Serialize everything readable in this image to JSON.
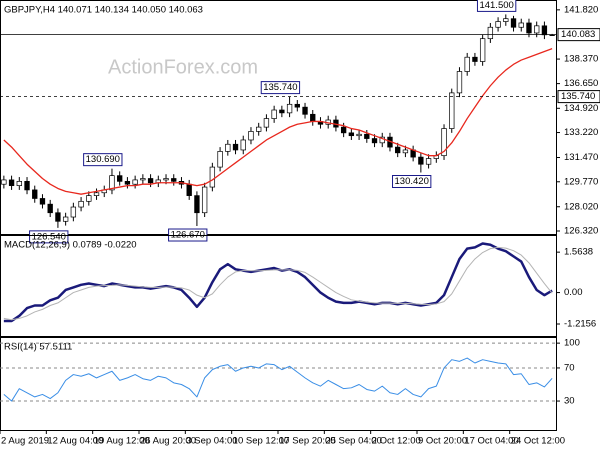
{
  "chart_data": [
    {
      "type": "candlestick",
      "title": "GBPJPY,H4 140.071 140.134 140.050 140.063",
      "watermark": "ActionForex.com",
      "open": [
        129.6,
        129.9,
        129.5,
        129.8,
        129.2,
        128.6,
        128.2,
        127.6,
        127.0,
        127.3,
        128.0,
        128.4,
        128.8,
        129.0,
        129.2,
        130.2,
        129.8,
        129.6,
        129.9,
        130.0,
        129.7,
        129.9,
        130.0,
        129.8,
        129.6,
        128.8,
        127.6,
        129.4,
        130.8,
        131.9,
        132.4,
        132.0,
        132.7,
        133.3,
        133.6,
        134.2,
        134.8,
        134.6,
        135.2,
        135.0,
        134.5,
        134.0,
        133.8,
        134.1,
        133.6,
        133.2,
        133.0,
        133.1,
        132.8,
        132.5,
        132.9,
        132.2,
        131.8,
        132.0,
        131.5,
        131.0,
        131.4,
        131.6,
        133.5,
        136.0,
        137.5,
        138.5,
        138.2,
        139.8,
        140.6,
        141.0,
        141.2,
        140.6,
        140.9,
        140.2,
        140.7,
        140.071
      ],
      "high": [
        130.2,
        130.2,
        130.1,
        130.1,
        129.5,
        128.9,
        128.5,
        127.9,
        127.6,
        128.3,
        128.7,
        129.1,
        129.3,
        129.5,
        130.69,
        130.5,
        130.1,
        130.2,
        130.3,
        130.3,
        130.2,
        130.3,
        130.3,
        130.1,
        129.9,
        129.1,
        129.7,
        131.1,
        132.2,
        132.7,
        132.7,
        133.0,
        133.6,
        133.9,
        134.5,
        135.1,
        135.1,
        135.74,
        135.5,
        135.3,
        134.8,
        134.3,
        134.4,
        134.4,
        133.9,
        133.5,
        133.4,
        133.4,
        133.1,
        133.2,
        133.2,
        132.5,
        132.3,
        132.3,
        131.8,
        131.7,
        131.9,
        133.8,
        136.3,
        137.8,
        138.8,
        138.8,
        140.1,
        140.9,
        141.3,
        141.5,
        141.4,
        141.2,
        141.2,
        141.0,
        141.0,
        140.134
      ],
      "low": [
        129.3,
        129.2,
        129.2,
        128.9,
        128.3,
        127.9,
        127.3,
        126.54,
        126.7,
        127.0,
        127.7,
        128.1,
        128.5,
        128.7,
        128.9,
        129.5,
        129.3,
        129.3,
        129.6,
        129.4,
        129.4,
        129.6,
        129.5,
        129.3,
        128.5,
        126.67,
        127.3,
        129.1,
        130.5,
        131.6,
        131.7,
        131.7,
        132.4,
        133.0,
        133.3,
        133.9,
        134.3,
        134.3,
        134.7,
        134.2,
        133.7,
        133.5,
        133.5,
        133.3,
        132.9,
        132.7,
        132.7,
        132.5,
        132.2,
        132.2,
        131.9,
        131.5,
        131.5,
        131.2,
        130.42,
        130.7,
        131.1,
        131.3,
        133.2,
        135.7,
        137.2,
        137.9,
        137.9,
        139.5,
        140.3,
        140.7,
        140.3,
        140.3,
        139.9,
        139.9,
        139.77,
        140.05
      ],
      "close": [
        129.9,
        129.5,
        129.8,
        129.2,
        128.6,
        128.2,
        127.6,
        127.0,
        127.3,
        128.0,
        128.4,
        128.8,
        129.0,
        129.2,
        130.2,
        129.8,
        129.6,
        129.9,
        130.0,
        129.7,
        129.9,
        130.0,
        129.8,
        129.6,
        128.8,
        127.6,
        129.4,
        130.8,
        131.9,
        132.4,
        132.0,
        132.7,
        133.3,
        133.6,
        134.2,
        134.8,
        134.6,
        135.2,
        135.0,
        134.5,
        134.0,
        133.8,
        134.1,
        133.6,
        133.2,
        133.0,
        133.1,
        132.8,
        132.5,
        132.9,
        132.2,
        131.8,
        132.0,
        131.5,
        131.0,
        131.4,
        131.6,
        133.5,
        136.0,
        137.5,
        138.5,
        138.2,
        139.8,
        140.6,
        141.0,
        141.2,
        140.6,
        140.9,
        140.2,
        140.7,
        140.07,
        140.063
      ],
      "candle_colors": {
        "up": "#ffffff",
        "down": "#000000",
        "outline": "#000000"
      },
      "series": [
        {
          "color": "#e8281e",
          "values": [
            132.7,
            132.2,
            131.6,
            131.0,
            130.5,
            130.0,
            129.6,
            129.3,
            129.1,
            129.0,
            128.9,
            129.0,
            129.1,
            129.2,
            129.3,
            129.4,
            129.5,
            129.5,
            129.6,
            129.6,
            129.7,
            129.7,
            129.7,
            129.7,
            129.6,
            129.5,
            129.6,
            129.9,
            130.3,
            130.7,
            131.1,
            131.5,
            131.9,
            132.3,
            132.7,
            133.0,
            133.3,
            133.6,
            133.8,
            133.9,
            134.0,
            134.0,
            133.9,
            133.8,
            133.7,
            133.5,
            133.4,
            133.2,
            133.0,
            132.8,
            132.6,
            132.4,
            132.2,
            132.0,
            131.8,
            131.6,
            131.6,
            131.9,
            132.5,
            133.3,
            134.2,
            135.0,
            135.8,
            136.5,
            137.1,
            137.6,
            138.0,
            138.3,
            138.5,
            138.7,
            138.9,
            139.1
          ]
        }
      ],
      "price_lines": [
        {
          "value": 140.083,
          "label": "140.083",
          "style": "solid"
        },
        {
          "value": 135.74,
          "label": "135.740",
          "style": "dashed"
        }
      ],
      "annotations": [
        {
          "value": 141.5,
          "label": "141.500"
        },
        {
          "value": 135.74,
          "label": "135.740"
        },
        {
          "value": 130.69,
          "label": "130.690"
        },
        {
          "value": 130.42,
          "label": "130.420"
        },
        {
          "value": 126.54,
          "label": "126.540"
        },
        {
          "value": 126.67,
          "label": "126.670"
        }
      ],
      "ylim": [
        126.11,
        142.37
      ],
      "yticks": [
        {
          "value": 141.82,
          "label": "141.820"
        },
        {
          "value": 138.37,
          "label": "138.370"
        },
        {
          "value": 136.65,
          "label": "136.650"
        },
        {
          "value": 134.92,
          "label": "134.920"
        },
        {
          "value": 133.22,
          "label": "133.220"
        },
        {
          "value": 131.47,
          "label": "131.470"
        },
        {
          "value": 129.77,
          "label": "129.770"
        },
        {
          "value": 128.02,
          "label": "128.020"
        },
        {
          "value": 126.32,
          "label": "126.320"
        }
      ],
      "grid": false
    },
    {
      "type": "line",
      "title": "MACD(12,26,9) 0.0789 -0.0220",
      "series": [
        {
          "color": "#1a1a7a",
          "values": [
            -1.1,
            -1.1,
            -0.9,
            -0.6,
            -0.5,
            -0.5,
            -0.3,
            -0.2,
            0.1,
            0.2,
            0.3,
            0.35,
            0.3,
            0.25,
            0.35,
            0.3,
            0.25,
            0.2,
            0.2,
            0.15,
            0.2,
            0.25,
            0.2,
            0.1,
            -0.2,
            -0.55,
            -0.2,
            0.4,
            0.9,
            1.1,
            0.9,
            0.85,
            0.8,
            0.85,
            0.9,
            0.95,
            0.85,
            0.9,
            0.8,
            0.6,
            0.3,
            0.0,
            -0.2,
            -0.35,
            -0.4,
            -0.4,
            -0.35,
            -0.4,
            -0.45,
            -0.4,
            -0.4,
            -0.45,
            -0.4,
            -0.45,
            -0.5,
            -0.45,
            -0.4,
            -0.1,
            0.6,
            1.3,
            1.7,
            1.75,
            1.9,
            1.85,
            1.7,
            1.6,
            1.4,
            1.2,
            0.6,
            0.1,
            -0.1,
            0.0789
          ]
        },
        {
          "color": "#b4b4b4",
          "values": [
            -1.0,
            -1.05,
            -1.0,
            -0.9,
            -0.75,
            -0.65,
            -0.5,
            -0.4,
            -0.2,
            0.0,
            0.1,
            0.2,
            0.25,
            0.27,
            0.28,
            0.3,
            0.28,
            0.25,
            0.22,
            0.2,
            0.2,
            0.21,
            0.21,
            0.18,
            0.1,
            -0.1,
            -0.2,
            -0.05,
            0.3,
            0.6,
            0.8,
            0.85,
            0.85,
            0.84,
            0.86,
            0.88,
            0.88,
            0.88,
            0.86,
            0.78,
            0.6,
            0.4,
            0.2,
            0.0,
            -0.15,
            -0.28,
            -0.33,
            -0.37,
            -0.4,
            -0.41,
            -0.41,
            -0.42,
            -0.42,
            -0.43,
            -0.45,
            -0.46,
            -0.44,
            -0.35,
            -0.05,
            0.45,
            0.95,
            1.3,
            1.55,
            1.7,
            1.75,
            1.72,
            1.62,
            1.45,
            1.15,
            0.75,
            0.35,
            -0.022
          ]
        }
      ],
      "ylim": [
        -1.68,
        2.15
      ],
      "yticks": [
        1.5638,
        {
          "value": 0,
          "label": "0.00"
        },
        -1.2156
      ],
      "grid": false
    },
    {
      "type": "line",
      "title": "RSI(14) 57.5111",
      "categories": [
        "2 Aug 2019",
        null,
        null,
        null,
        null,
        null,
        "12 Aug 04:00",
        null,
        null,
        null,
        null,
        null,
        "19 Aug 12:00",
        null,
        null,
        null,
        null,
        null,
        "26 Aug 20:00",
        null,
        null,
        null,
        null,
        null,
        "3 Sep 04:00",
        null,
        null,
        null,
        null,
        null,
        "10 Sep 12:00",
        null,
        null,
        null,
        null,
        null,
        "17 Sep 20:00",
        null,
        null,
        null,
        null,
        null,
        "25 Sep 04:00",
        null,
        null,
        null,
        null,
        null,
        "2 Oct 12:00",
        null,
        null,
        null,
        null,
        null,
        "9 Oct 20:00",
        null,
        null,
        null,
        null,
        null,
        "17 Oct 04:00",
        null,
        null,
        null,
        null,
        null,
        "24 Oct 12:00",
        null,
        null,
        null,
        null,
        null
      ],
      "series": [
        {
          "color": "#3a8ee6",
          "values": [
            38,
            30,
            45,
            40,
            35,
            38,
            33,
            40,
            55,
            62,
            60,
            63,
            58,
            62,
            66,
            55,
            58,
            62,
            57,
            55,
            60,
            58,
            52,
            50,
            45,
            35,
            58,
            68,
            72,
            74,
            66,
            70,
            72,
            70,
            75,
            74,
            68,
            72,
            65,
            58,
            52,
            48,
            55,
            50,
            45,
            46,
            50,
            44,
            42,
            48,
            40,
            38,
            45,
            38,
            35,
            45,
            48,
            70,
            80,
            78,
            82,
            76,
            80,
            78,
            76,
            75,
            62,
            63,
            50,
            52,
            47,
            57.5111
          ]
        }
      ],
      "ylim": [
        -5,
        105
      ],
      "yticks": [
        100,
        70,
        30
      ],
      "grid": true
    }
  ]
}
